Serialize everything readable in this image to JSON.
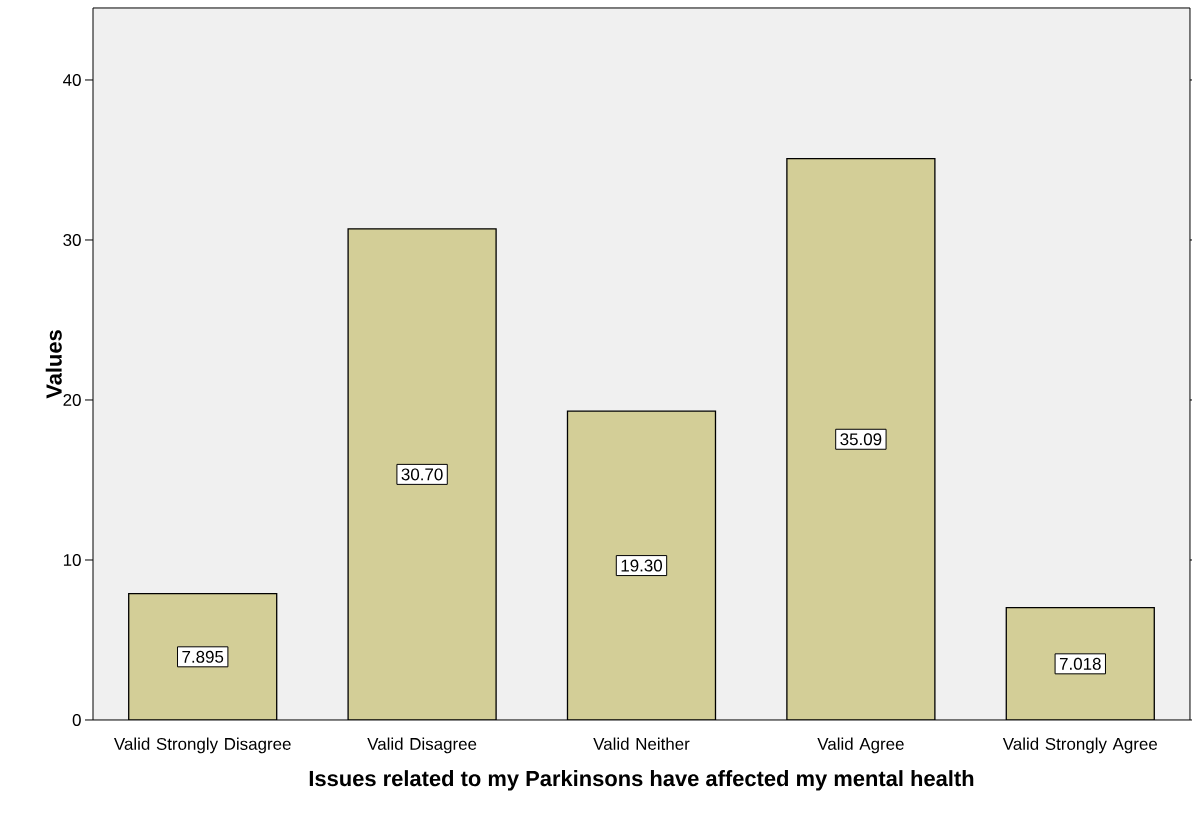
{
  "chart_data": {
    "type": "bar",
    "xlabel": "Issues related to my Parkinsons have affected my mental health",
    "ylabel": "Values",
    "categories": [
      "Valid Strongly Disagree",
      "Valid Disagree",
      "Valid Neither",
      "Valid Agree",
      "Valid Strongly Agree"
    ],
    "values": [
      7.895,
      30.7,
      19.3,
      35.09,
      7.018
    ],
    "value_labels": [
      "7.895",
      "30.70",
      "19.30",
      "35.09",
      "7.018"
    ],
    "color": "#d3ce97",
    "ylim": [
      0,
      44.5
    ],
    "yticks": [
      0,
      10,
      20,
      30,
      40
    ]
  }
}
